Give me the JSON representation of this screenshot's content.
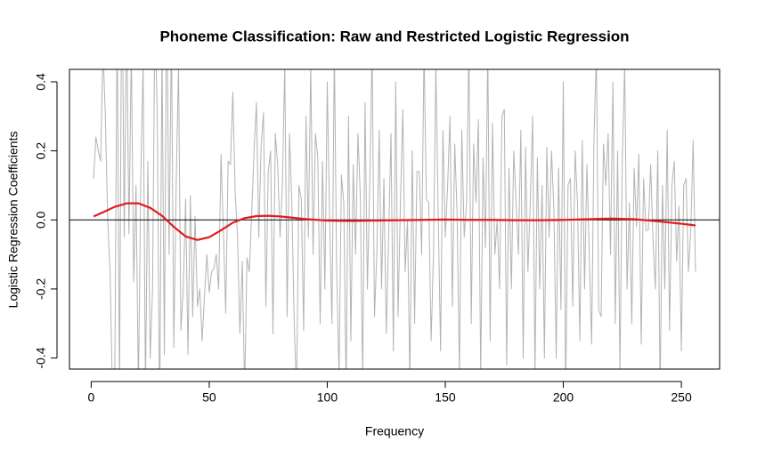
{
  "chart_data": {
    "type": "line",
    "title": "Phoneme Classification: Raw and Restricted Logistic Regression",
    "x_label": "Frequency",
    "y_label": "Logistic Regression Coefficients",
    "xlim": [
      -9.2,
      266.2
    ],
    "ylim": [
      -0.432,
      0.436
    ],
    "xticks": [
      0,
      50,
      100,
      150,
      200,
      250
    ],
    "yticks": [
      {
        "value": -0.4,
        "label": "-0.4"
      },
      {
        "value": -0.2,
        "label": "-0.2"
      },
      {
        "value": 0,
        "label": "0.0"
      },
      {
        "value": 0.2,
        "label": "0.2"
      },
      {
        "value": 0.4,
        "label": "0.4"
      }
    ],
    "hline": 0,
    "series": [
      {
        "color": "#b3b3b3",
        "x": [
          1,
          2,
          3,
          4,
          5,
          6,
          7,
          8,
          9,
          10,
          11,
          12,
          13,
          14,
          15,
          16,
          17,
          18,
          19,
          20,
          21,
          22,
          23,
          24,
          25,
          26,
          27,
          28,
          29,
          30,
          31,
          32,
          33,
          34,
          35,
          36,
          37,
          38,
          39,
          40,
          41,
          42,
          43,
          44,
          45,
          46,
          47,
          48,
          49,
          50,
          51,
          52,
          53,
          54,
          55,
          56,
          57,
          58,
          59,
          60,
          61,
          62,
          63,
          64,
          65,
          66,
          67,
          68,
          69,
          70,
          71,
          72,
          73,
          74,
          75,
          76,
          77,
          78,
          79,
          80,
          81,
          82,
          83,
          84,
          85,
          86,
          87,
          88,
          89,
          90,
          91,
          92,
          93,
          94,
          95,
          96,
          97,
          98,
          99,
          100,
          101,
          102,
          103,
          104,
          105,
          106,
          107,
          108,
          109,
          110,
          111,
          112,
          113,
          114,
          115,
          116,
          117,
          118,
          119,
          120,
          121,
          122,
          123,
          124,
          125,
          126,
          127,
          128,
          129,
          130,
          131,
          132,
          133,
          134,
          135,
          136,
          137,
          138,
          139,
          140,
          141,
          142,
          143,
          144,
          145,
          146,
          147,
          148,
          149,
          150,
          151,
          152,
          153,
          154,
          155,
          156,
          157,
          158,
          159,
          160,
          161,
          162,
          163,
          164,
          165,
          166,
          167,
          168,
          169,
          170,
          171,
          172,
          173,
          174,
          175,
          176,
          177,
          178,
          179,
          180,
          181,
          182,
          183,
          184,
          185,
          186,
          187,
          188,
          189,
          190,
          191,
          192,
          193,
          194,
          195,
          196,
          197,
          198,
          199,
          200,
          201,
          202,
          203,
          204,
          205,
          206,
          207,
          208,
          209,
          210,
          211,
          212,
          213,
          214,
          215,
          216,
          217,
          218,
          219,
          220,
          221,
          222,
          223,
          224,
          225,
          226,
          227,
          228,
          229,
          230,
          231,
          232,
          233,
          234,
          235,
          236,
          237,
          238,
          239,
          240,
          241,
          242,
          243,
          244,
          245,
          246,
          247,
          248,
          249,
          250,
          251,
          252,
          253,
          254,
          255,
          256
        ],
        "values": [
          0.12,
          0.24,
          0.2,
          0.17,
          0.5,
          0.3,
          0.0,
          -0.15,
          -0.5,
          -0.45,
          0.6,
          -0.5,
          0.8,
          -0.05,
          0.6,
          -0.04,
          0.5,
          -0.18,
          0.1,
          -0.5,
          0.12,
          0.45,
          -0.5,
          0.17,
          -0.4,
          -0.2,
          0.6,
          0.3,
          -0.6,
          0.5,
          -0.39,
          0.7,
          -0.1,
          0.55,
          -0.37,
          0.1,
          0.45,
          -0.32,
          -0.2,
          0.06,
          -0.39,
          0.07,
          -0.28,
          0.01,
          -0.25,
          -0.2,
          -0.35,
          -0.22,
          -0.1,
          -0.21,
          -0.15,
          -0.14,
          -0.1,
          -0.2,
          0.19,
          -0.03,
          -0.27,
          0.17,
          0.16,
          0.37,
          0.08,
          -0.05,
          -0.33,
          -0.12,
          -0.5,
          -0.11,
          -0.15,
          0.02,
          0.2,
          0.34,
          -0.05,
          0.22,
          0.31,
          -0.25,
          0.14,
          0.2,
          -0.33,
          0.25,
          0.16,
          -0.05,
          0.1,
          0.45,
          -0.28,
          0.25,
          0.05,
          -0.3,
          -0.5,
          0.1,
          0.06,
          -0.32,
          0.3,
          -0.05,
          0.45,
          -0.1,
          0.25,
          0.18,
          -0.3,
          0.17,
          -0.2,
          0.4,
          0.0,
          -0.3,
          0.5,
          -0.15,
          -0.45,
          0.13,
          0.05,
          -0.5,
          0.3,
          -0.35,
          0.16,
          -0.1,
          0.25,
          0.07,
          -0.46,
          0.34,
          -0.2,
          0.1,
          0.5,
          -0.28,
          -0.1,
          0.26,
          -0.2,
          0.12,
          -0.33,
          -0.05,
          0.25,
          -0.38,
          0.4,
          -0.28,
          0.05,
          0.32,
          -0.15,
          0.0,
          -0.47,
          0.2,
          -0.3,
          0.14,
          0.14,
          -0.1,
          0.5,
          0.06,
          0.05,
          -0.35,
          -0.1,
          0.45,
          0.02,
          -0.38,
          0.26,
          -0.05,
          0.1,
          0.3,
          -0.25,
          0.22,
          0.02,
          -0.45,
          0.26,
          -0.05,
          0.05,
          0.5,
          -0.3,
          0.22,
          0.05,
          0.29,
          -0.45,
          0.18,
          -0.08,
          0.5,
          -0.35,
          0.28,
          -0.1,
          0.0,
          -0.2,
          0.3,
          0.32,
          -0.42,
          0.15,
          -0.2,
          0.2,
          0.05,
          -0.1,
          0.26,
          -0.4,
          0.21,
          -0.15,
          0.05,
          0.3,
          -0.45,
          0.18,
          -0.2,
          0.1,
          -0.4,
          0.21,
          -0.05,
          0.2,
          0.03,
          -0.4,
          0.15,
          -0.26,
          0.4,
          -0.5,
          0.1,
          0.12,
          -0.25,
          0.2,
          0.05,
          -0.35,
          0.23,
          -0.2,
          0.16,
          -0.1,
          -0.36,
          0.24,
          0.48,
          -0.26,
          -0.28,
          0.22,
          0.1,
          0.25,
          -0.1,
          0.4,
          -0.3,
          0.2,
          -0.44,
          0.18,
          0.45,
          -0.2,
          0.05,
          -0.3,
          0.15,
          -0.02,
          0.19,
          -0.36,
          0.12,
          -0.03,
          -0.03,
          0.16,
          -0.06,
          -0.2,
          0.2,
          -0.5,
          0.1,
          -0.2,
          0.26,
          -0.32,
          0.1,
          0.17,
          -0.12,
          0.04,
          -0.38,
          0.1,
          0.12,
          -0.15,
          -0.03,
          0.23,
          -0.15
        ]
      },
      {
        "color": "#e41a1c",
        "x": [
          1,
          5,
          10,
          15,
          20,
          25,
          30,
          35,
          40,
          45,
          50,
          55,
          60,
          65,
          70,
          75,
          80,
          90,
          100,
          110,
          120,
          130,
          140,
          150,
          160,
          170,
          180,
          190,
          200,
          210,
          220,
          230,
          240,
          250,
          256
        ],
        "values": [
          0.01,
          0.022,
          0.038,
          0.048,
          0.048,
          0.035,
          0.012,
          -0.02,
          -0.048,
          -0.058,
          -0.05,
          -0.03,
          -0.008,
          0.005,
          0.011,
          0.012,
          0.01,
          0.003,
          -0.002,
          -0.003,
          -0.002,
          -0.001,
          0.0,
          0.001,
          0.0,
          0.0,
          -0.001,
          -0.001,
          0.0,
          0.002,
          0.004,
          0.002,
          -0.004,
          -0.011,
          -0.016
        ]
      }
    ]
  }
}
